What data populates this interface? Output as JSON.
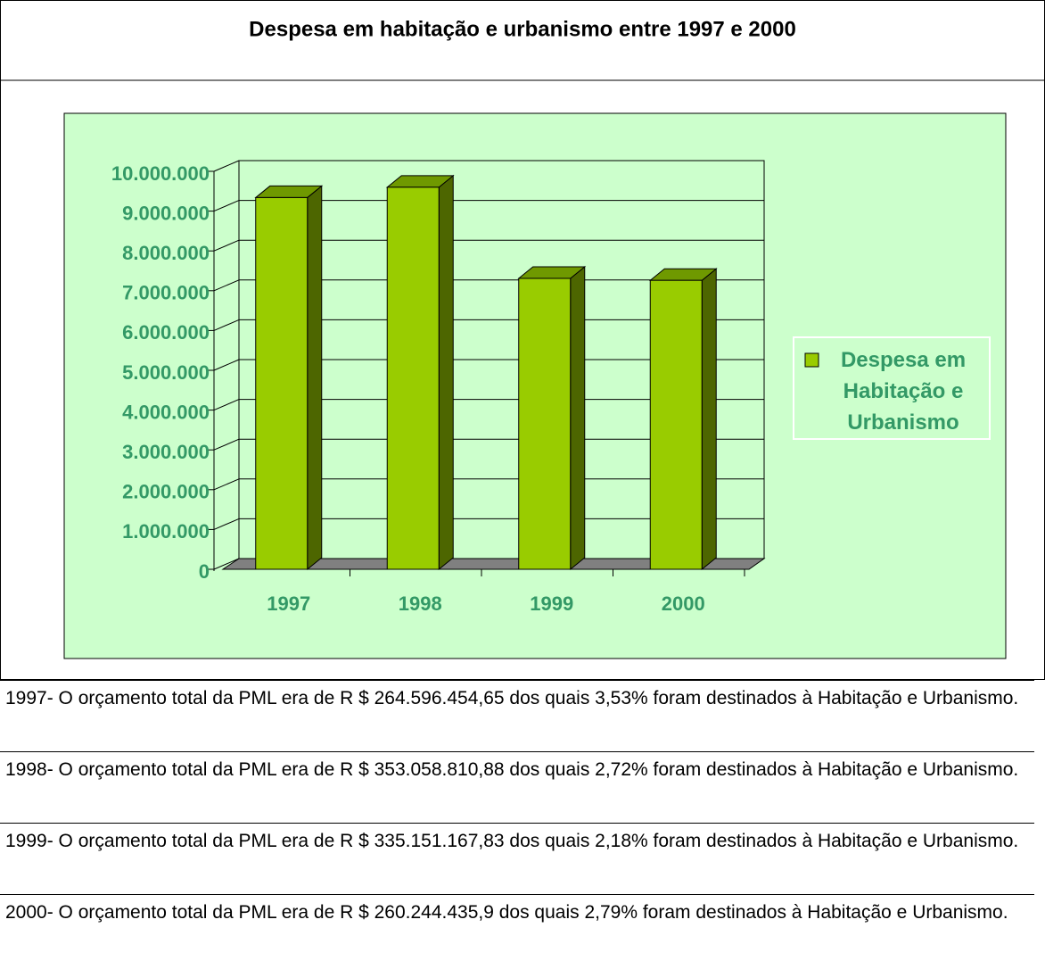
{
  "chart_data": {
    "type": "bar3d",
    "title": "Despesa em habitação e urbanismo entre 1997 e 2000",
    "categories": [
      "1997",
      "1998",
      "1999",
      "2000"
    ],
    "series": [
      {
        "name": "Despesa em Habitação e Urbanismo",
        "color": "#99cc00",
        "values": [
          9340000,
          9600000,
          7310000,
          7260000
        ]
      }
    ],
    "ylim": [
      0,
      10000000
    ],
    "yticks": [
      0,
      {
        "value": 1000000,
        "label": "1.000.000"
      },
      {
        "value": 2000000,
        "label": "2.000.000"
      },
      {
        "value": 3000000,
        "label": "3.000.000"
      },
      {
        "value": 4000000,
        "label": "4.000.000"
      },
      {
        "value": 5000000,
        "label": "5.000.000"
      },
      {
        "value": 6000000,
        "label": "6.000.000"
      },
      {
        "value": 7000000,
        "label": "7.000.000"
      },
      {
        "value": 8000000,
        "label": "8.000.000"
      },
      {
        "value": 9000000,
        "label": "9.000.000"
      },
      {
        "value": 10000000,
        "label": "10.000.000"
      }
    ],
    "grid": true,
    "legend": "right"
  },
  "notes": [
    "1997- O orçamento total da PML era de R $ 264.596.454,65 dos quais 3,53% foram destinados à Habitação e Urbanismo.",
    "1998- O orçamento total da PML era de R $ 353.058.810,88 dos quais 2,72% foram destinados à Habitação e Urbanismo.",
    "1999- O orçamento total da PML era de R $ 335.151.167,83 dos quais 2,18% foram destinados à Habitação e Urbanismo.",
    "2000- O orçamento total da PML era de R $ 260.244.435,9 dos quais 2,79% foram destinados à Habitação e Urbanismo."
  ]
}
